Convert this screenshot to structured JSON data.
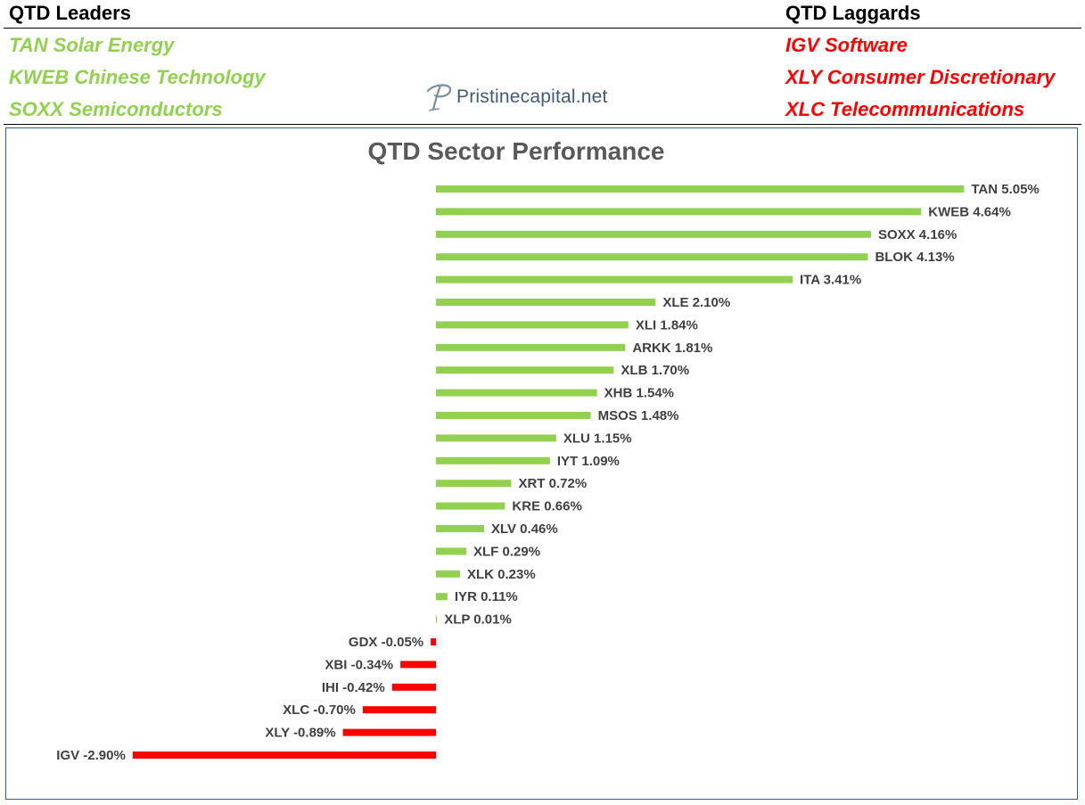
{
  "header": {
    "leaders_title": "QTD Leaders",
    "laggards_title": "QTD Laggards",
    "leaders": [
      "TAN Solar Energy",
      "KWEB Chinese Technology",
      "SOXX Semiconductors"
    ],
    "laggards": [
      "IGV Software",
      "XLY Consumer Discretionary",
      "XLC Telecommunications"
    ],
    "leader_color": "#92d050",
    "laggard_color": "#ff0000"
  },
  "logo": {
    "icon": "script-p-logo-icon",
    "text": "Pristinecapital.net"
  },
  "chart_data": {
    "type": "bar",
    "orientation": "horizontal",
    "title": "QTD Sector Performance",
    "unit": "%",
    "positive_color": "#92d050",
    "negative_color": "#ff0000",
    "grid": false,
    "legend": "none",
    "categories": [
      "TAN",
      "KWEB",
      "SOXX",
      "BLOK",
      "ITA",
      "XLE",
      "XLI",
      "ARKK",
      "XLB",
      "XHB",
      "MSOS",
      "XLU",
      "IYT",
      "XRT",
      "KRE",
      "XLV",
      "XLF",
      "XLK",
      "IYR",
      "XLP",
      "GDX",
      "XBI",
      "IHI",
      "XLC",
      "XLY",
      "IGV"
    ],
    "values": [
      5.05,
      4.64,
      4.16,
      4.13,
      3.41,
      2.1,
      1.84,
      1.81,
      1.7,
      1.54,
      1.48,
      1.15,
      1.09,
      0.72,
      0.66,
      0.46,
      0.29,
      0.23,
      0.11,
      0.01,
      -0.05,
      -0.34,
      -0.42,
      -0.7,
      -0.89,
      -2.9
    ],
    "labels": [
      "TAN 5.05%",
      "KWEB 4.64%",
      "SOXX 4.16%",
      "BLOK 4.13%",
      "ITA 3.41%",
      "XLE 2.10%",
      "XLI 1.84%",
      "ARKK 1.81%",
      "XLB 1.70%",
      "XHB 1.54%",
      "MSOS 1.48%",
      "XLU 1.15%",
      "IYT 1.09%",
      "XRT 0.72%",
      "KRE 0.66%",
      "XLV 0.46%",
      "XLF 0.29%",
      "XLK 0.23%",
      "IYR 0.11%",
      "XLP 0.01%",
      "GDX -0.05%",
      "XBI -0.34%",
      "IHI -0.42%",
      "XLC -0.70%",
      "XLY -0.89%",
      "IGV -2.90%"
    ]
  }
}
